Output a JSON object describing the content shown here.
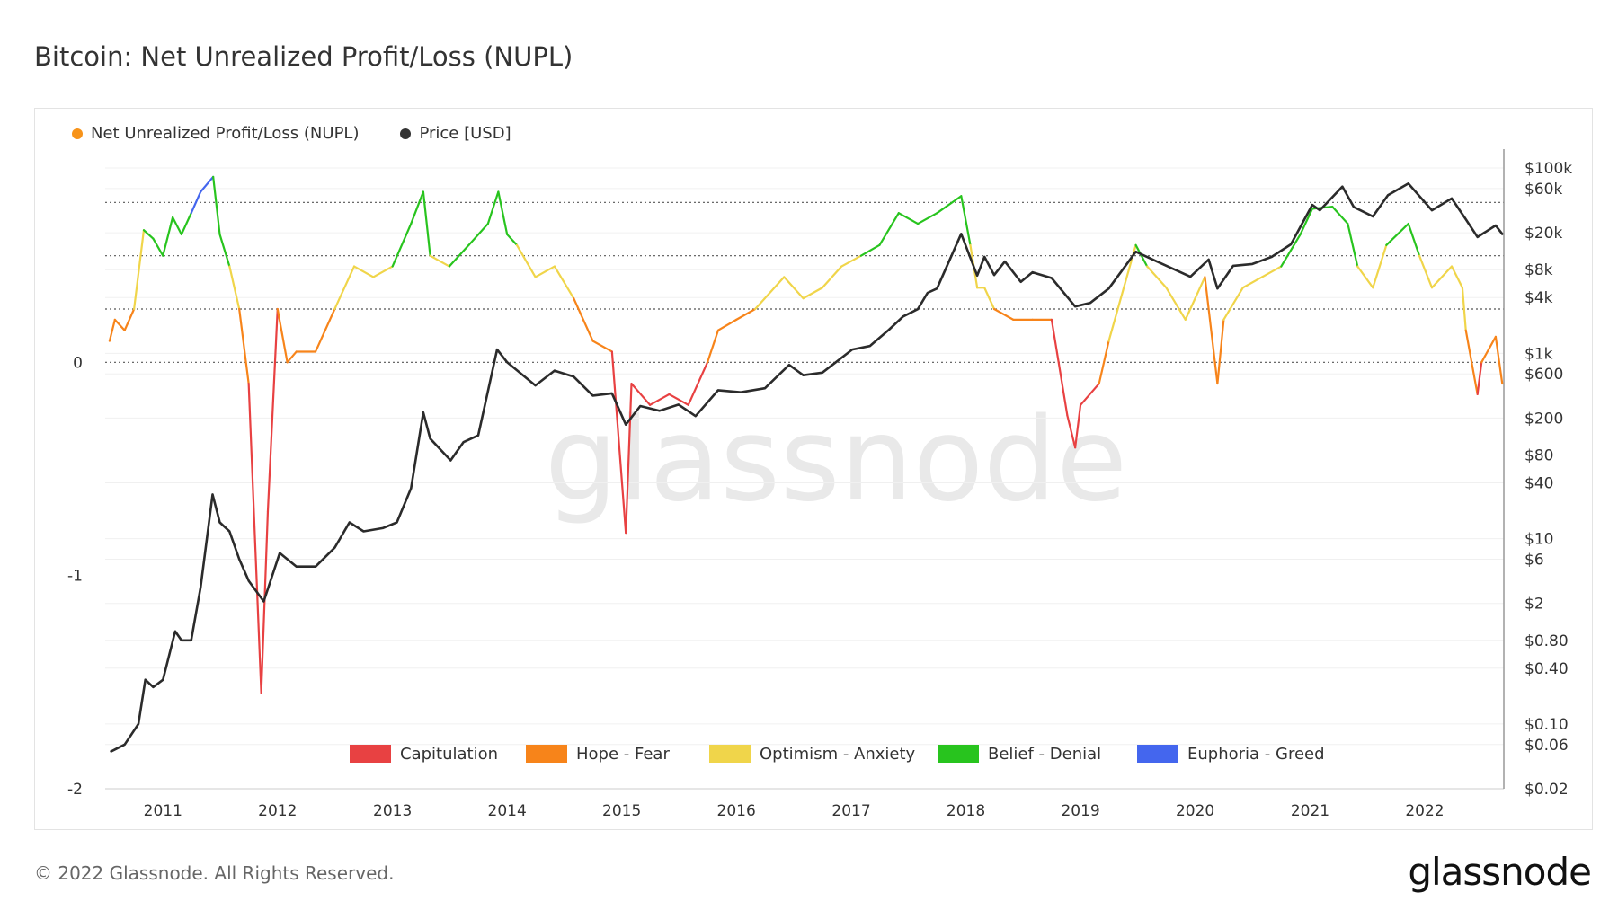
{
  "title": "Bitcoin: Net Unrealized Profit/Loss (NUPL)",
  "footer": "© 2022 Glassnode. All Rights Reserved.",
  "brand": "glassnode",
  "watermark": "glassnode",
  "legend": [
    {
      "label": "Net Unrealized Profit/Loss (NUPL)",
      "color": "#f7931a"
    },
    {
      "label": "Price [USD]",
      "color": "#333333"
    }
  ],
  "zones": [
    {
      "label": "Capitulation",
      "color": "#e84142",
      "from": -2.0,
      "to": 0.0
    },
    {
      "label": "Hope - Fear",
      "color": "#f7841a",
      "from": 0.0,
      "to": 0.25
    },
    {
      "label": "Optimism - Anxiety",
      "color": "#f0d54a",
      "from": 0.25,
      "to": 0.5
    },
    {
      "label": "Belief - Denial",
      "color": "#28c41e",
      "from": 0.5,
      "to": 0.75
    },
    {
      "label": "Euphoria - Greed",
      "color": "#4466ee",
      "from": 0.75,
      "to": 1.0
    }
  ],
  "chart_data": {
    "type": "line",
    "x_range": [
      "2010-07-01",
      "2022-09-10"
    ],
    "x_ticks": [
      "2011",
      "2012",
      "2013",
      "2014",
      "2015",
      "2016",
      "2017",
      "2018",
      "2019",
      "2020",
      "2021",
      "2022"
    ],
    "y_left": {
      "ticks": [
        0,
        -1,
        -2
      ],
      "tick_labels": [
        "0",
        "-1",
        "-2"
      ],
      "range": [
        -2.0,
        1.0
      ],
      "reference_lines": [
        0.0,
        0.25,
        0.5,
        0.75
      ]
    },
    "y_right": {
      "scale": "log",
      "range": [
        0.02,
        160000
      ],
      "ticks": [
        100000,
        60000,
        20000,
        8000,
        4000,
        1000,
        600,
        200,
        80,
        40,
        10,
        6,
        2,
        0.8,
        0.4,
        0.1,
        0.06,
        0.02
      ],
      "tick_labels": [
        "$100k",
        "$60k",
        "$20k",
        "$8k",
        "$4k",
        "$1k",
        "$600",
        "$200",
        "$80",
        "$40",
        "$10",
        "$6",
        "$2",
        "$0.80",
        "$0.40",
        "$0.10",
        "$0.06",
        "$0.02"
      ]
    },
    "series": [
      {
        "name": "Net Unrealized Profit/Loss (NUPL)",
        "axis": "left",
        "points": [
          [
            "2010-07-15",
            0.1
          ],
          [
            "2010-08-01",
            0.2
          ],
          [
            "2010-09-01",
            0.15
          ],
          [
            "2010-10-01",
            0.25
          ],
          [
            "2010-11-01",
            0.62
          ],
          [
            "2010-12-01",
            0.58
          ],
          [
            "2011-01-01",
            0.5
          ],
          [
            "2011-02-01",
            0.68
          ],
          [
            "2011-03-01",
            0.6
          ],
          [
            "2011-04-01",
            0.7
          ],
          [
            "2011-05-01",
            0.8
          ],
          [
            "2011-06-10",
            0.87
          ],
          [
            "2011-07-01",
            0.6
          ],
          [
            "2011-08-01",
            0.45
          ],
          [
            "2011-09-01",
            0.25
          ],
          [
            "2011-10-01",
            -0.1
          ],
          [
            "2011-11-10",
            -1.55
          ],
          [
            "2011-12-01",
            -0.7
          ],
          [
            "2012-01-01",
            0.25
          ],
          [
            "2012-02-01",
            0.0
          ],
          [
            "2012-03-01",
            0.05
          ],
          [
            "2012-05-01",
            0.05
          ],
          [
            "2012-07-01",
            0.25
          ],
          [
            "2012-09-01",
            0.45
          ],
          [
            "2012-11-01",
            0.4
          ],
          [
            "2013-01-01",
            0.45
          ],
          [
            "2013-03-01",
            0.65
          ],
          [
            "2013-04-09",
            0.8
          ],
          [
            "2013-05-01",
            0.5
          ],
          [
            "2013-07-01",
            0.45
          ],
          [
            "2013-09-01",
            0.55
          ],
          [
            "2013-11-01",
            0.65
          ],
          [
            "2013-12-04",
            0.8
          ],
          [
            "2014-01-01",
            0.6
          ],
          [
            "2014-02-01",
            0.55
          ],
          [
            "2014-04-01",
            0.4
          ],
          [
            "2014-06-01",
            0.45
          ],
          [
            "2014-08-01",
            0.3
          ],
          [
            "2014-10-01",
            0.1
          ],
          [
            "2014-12-01",
            0.05
          ],
          [
            "2015-01-14",
            -0.8
          ],
          [
            "2015-02-01",
            -0.1
          ],
          [
            "2015-04-01",
            -0.2
          ],
          [
            "2015-06-01",
            -0.15
          ],
          [
            "2015-08-01",
            -0.2
          ],
          [
            "2015-10-01",
            0.0
          ],
          [
            "2015-11-04",
            0.15
          ],
          [
            "2016-01-01",
            0.2
          ],
          [
            "2016-03-01",
            0.25
          ],
          [
            "2016-06-01",
            0.4
          ],
          [
            "2016-08-01",
            0.3
          ],
          [
            "2016-10-01",
            0.35
          ],
          [
            "2016-12-01",
            0.45
          ],
          [
            "2017-02-01",
            0.5
          ],
          [
            "2017-04-01",
            0.55
          ],
          [
            "2017-06-01",
            0.7
          ],
          [
            "2017-08-01",
            0.65
          ],
          [
            "2017-10-01",
            0.7
          ],
          [
            "2017-12-17",
            0.78
          ],
          [
            "2018-01-15",
            0.55
          ],
          [
            "2018-02-06",
            0.35
          ],
          [
            "2018-03-01",
            0.35
          ],
          [
            "2018-04-01",
            0.25
          ],
          [
            "2018-06-01",
            0.2
          ],
          [
            "2018-08-01",
            0.2
          ],
          [
            "2018-10-01",
            0.2
          ],
          [
            "2018-11-20",
            -0.25
          ],
          [
            "2018-12-15",
            -0.4
          ],
          [
            "2019-01-01",
            -0.2
          ],
          [
            "2019-03-01",
            -0.1
          ],
          [
            "2019-04-01",
            0.1
          ],
          [
            "2019-06-26",
            0.55
          ],
          [
            "2019-08-01",
            0.45
          ],
          [
            "2019-10-01",
            0.35
          ],
          [
            "2019-12-01",
            0.2
          ],
          [
            "2020-02-01",
            0.4
          ],
          [
            "2020-03-12",
            -0.1
          ],
          [
            "2020-04-01",
            0.2
          ],
          [
            "2020-06-01",
            0.35
          ],
          [
            "2020-08-01",
            0.4
          ],
          [
            "2020-10-01",
            0.45
          ],
          [
            "2020-12-01",
            0.6
          ],
          [
            "2021-01-08",
            0.72
          ],
          [
            "2021-03-13",
            0.73
          ],
          [
            "2021-05-01",
            0.65
          ],
          [
            "2021-06-01",
            0.45
          ],
          [
            "2021-07-20",
            0.35
          ],
          [
            "2021-09-01",
            0.55
          ],
          [
            "2021-11-10",
            0.65
          ],
          [
            "2021-12-15",
            0.5
          ],
          [
            "2022-01-24",
            0.35
          ],
          [
            "2022-03-28",
            0.45
          ],
          [
            "2022-05-01",
            0.35
          ],
          [
            "2022-05-12",
            0.15
          ],
          [
            "2022-06-18",
            -0.15
          ],
          [
            "2022-07-01",
            0.0
          ],
          [
            "2022-08-15",
            0.12
          ],
          [
            "2022-09-05",
            -0.1
          ]
        ]
      },
      {
        "name": "Price [USD]",
        "axis": "right",
        "points": [
          [
            "2010-07-17",
            0.05
          ],
          [
            "2010-09-01",
            0.06
          ],
          [
            "2010-10-15",
            0.1
          ],
          [
            "2010-11-06",
            0.3
          ],
          [
            "2010-12-01",
            0.25
          ],
          [
            "2011-01-01",
            0.3
          ],
          [
            "2011-02-09",
            1.0
          ],
          [
            "2011-03-01",
            0.8
          ],
          [
            "2011-04-01",
            0.8
          ],
          [
            "2011-05-01",
            3
          ],
          [
            "2011-06-08",
            30
          ],
          [
            "2011-07-01",
            15
          ],
          [
            "2011-08-01",
            12
          ],
          [
            "2011-09-01",
            6
          ],
          [
            "2011-10-01",
            3.5
          ],
          [
            "2011-11-18",
            2.1
          ],
          [
            "2012-01-08",
            7
          ],
          [
            "2012-03-01",
            5
          ],
          [
            "2012-05-01",
            5
          ],
          [
            "2012-07-01",
            8
          ],
          [
            "2012-08-17",
            15
          ],
          [
            "2012-10-01",
            12
          ],
          [
            "2012-12-01",
            13
          ],
          [
            "2013-01-15",
            15
          ],
          [
            "2013-03-01",
            35
          ],
          [
            "2013-04-09",
            230
          ],
          [
            "2013-05-01",
            120
          ],
          [
            "2013-07-05",
            70
          ],
          [
            "2013-08-15",
            110
          ],
          [
            "2013-10-01",
            130
          ],
          [
            "2013-11-30",
            1100
          ],
          [
            "2014-01-01",
            800
          ],
          [
            "2014-04-01",
            450
          ],
          [
            "2014-06-01",
            650
          ],
          [
            "2014-08-01",
            560
          ],
          [
            "2014-10-01",
            350
          ],
          [
            "2014-12-01",
            370
          ],
          [
            "2015-01-14",
            170
          ],
          [
            "2015-03-01",
            270
          ],
          [
            "2015-05-01",
            240
          ],
          [
            "2015-07-01",
            280
          ],
          [
            "2015-08-24",
            210
          ],
          [
            "2015-11-04",
            400
          ],
          [
            "2016-01-15",
            380
          ],
          [
            "2016-04-01",
            420
          ],
          [
            "2016-06-17",
            750
          ],
          [
            "2016-08-01",
            580
          ],
          [
            "2016-10-01",
            620
          ],
          [
            "2017-01-04",
            1100
          ],
          [
            "2017-03-01",
            1200
          ],
          [
            "2017-05-01",
            1800
          ],
          [
            "2017-06-15",
            2500
          ],
          [
            "2017-08-01",
            3000
          ],
          [
            "2017-09-01",
            4500
          ],
          [
            "2017-10-01",
            5000
          ],
          [
            "2017-12-17",
            19500
          ],
          [
            "2018-02-06",
            6900
          ],
          [
            "2018-03-01",
            11000
          ],
          [
            "2018-04-01",
            7000
          ],
          [
            "2018-05-05",
            9800
          ],
          [
            "2018-06-25",
            5900
          ],
          [
            "2018-08-01",
            7500
          ],
          [
            "2018-10-01",
            6500
          ],
          [
            "2018-12-15",
            3200
          ],
          [
            "2019-02-01",
            3500
          ],
          [
            "2019-04-01",
            5000
          ],
          [
            "2019-06-26",
            12500
          ],
          [
            "2019-09-01",
            9800
          ],
          [
            "2019-12-17",
            6700
          ],
          [
            "2020-02-13",
            10300
          ],
          [
            "2020-03-12",
            5000
          ],
          [
            "2020-05-01",
            8800
          ],
          [
            "2020-07-01",
            9200
          ],
          [
            "2020-09-01",
            11000
          ],
          [
            "2020-11-01",
            15000
          ],
          [
            "2021-01-08",
            40000
          ],
          [
            "2021-02-01",
            35000
          ],
          [
            "2021-04-14",
            63000
          ],
          [
            "2021-05-20",
            38000
          ],
          [
            "2021-07-20",
            30000
          ],
          [
            "2021-09-06",
            51000
          ],
          [
            "2021-11-10",
            68000
          ],
          [
            "2022-01-24",
            35000
          ],
          [
            "2022-03-28",
            47000
          ],
          [
            "2022-05-12",
            28000
          ],
          [
            "2022-06-18",
            18000
          ],
          [
            "2022-08-15",
            24000
          ],
          [
            "2022-09-07",
            19000
          ]
        ]
      }
    ]
  }
}
